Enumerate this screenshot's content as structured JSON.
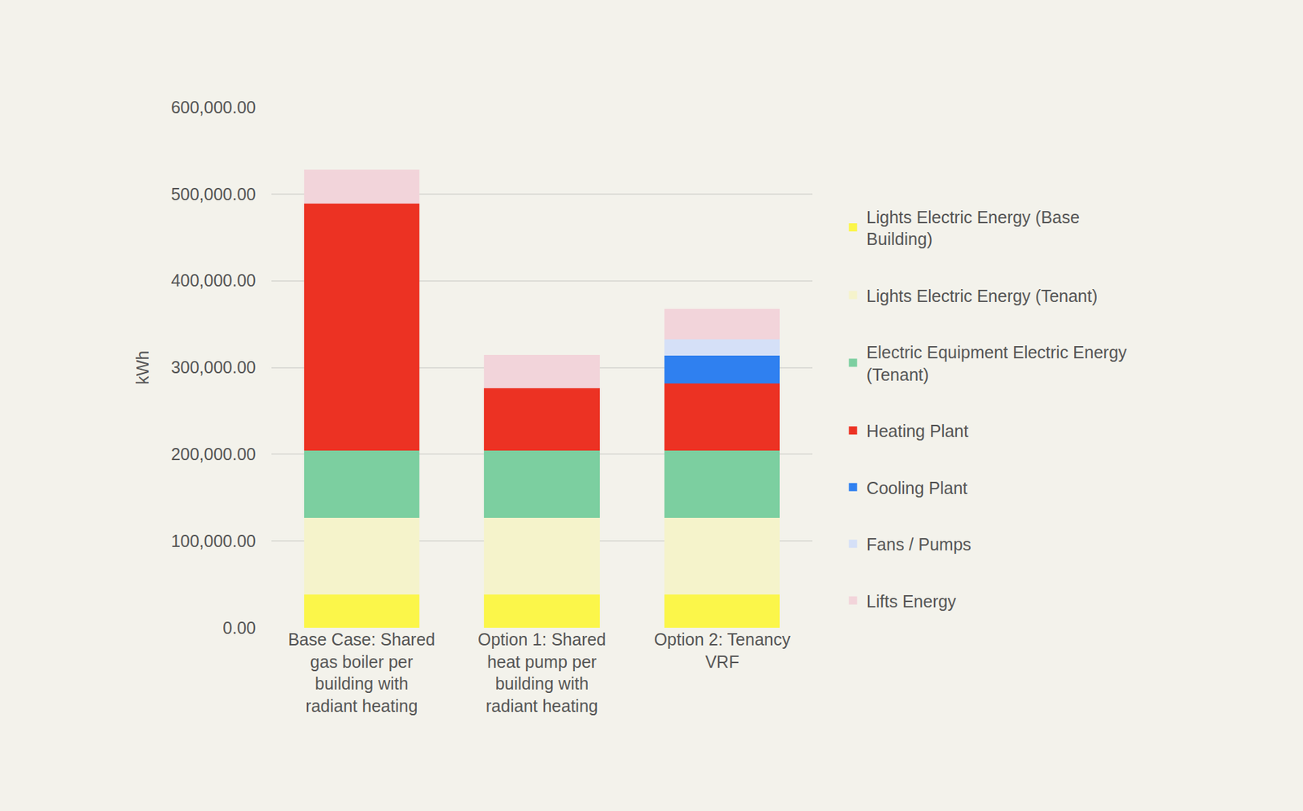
{
  "chart_data": {
    "type": "bar",
    "stacked": true,
    "grid": true,
    "legend": "right",
    "y_label": "kWh",
    "categories": [
      "Base Case: Shared gas boiler per building with radiant heating",
      "Option 1: Shared heat pump per building with radiant heating",
      "Option 2: Tenancy VRF"
    ],
    "series": [
      {
        "name": "Lights Electric Energy (Base Building)",
        "color": "#fbf64a",
        "values": [
          38000,
          38000,
          38000
        ]
      },
      {
        "name": "Lights Electric Energy (Tenant)",
        "color": "#f5f3cb",
        "values": [
          88500,
          88500,
          88500
        ]
      },
      {
        "name": "Electric Equipment Electric Energy (Tenant)",
        "color": "#7ccfa0",
        "values": [
          77500,
          77500,
          77500
        ]
      },
      {
        "name": "Heating Plant",
        "color": "#ec3223",
        "values": [
          285000,
          72000,
          78000
        ]
      },
      {
        "name": "Cooling Plant",
        "color": "#2f80f0",
        "values": [
          null,
          null,
          31500
        ]
      },
      {
        "name": "Fans / Pumps",
        "color": "#d5e0f7",
        "values": [
          null,
          null,
          19000
        ]
      },
      {
        "name": "Lifts Energy",
        "color": "#f2d4da",
        "values": [
          39000,
          38500,
          35500
        ]
      }
    ],
    "ylim": [
      0,
      600000
    ],
    "yticks": [
      {
        "value": 0,
        "label": "0.00"
      },
      {
        "value": 100000,
        "label": "100,000.00"
      },
      {
        "value": 200000,
        "label": "200,000.00"
      },
      {
        "value": 300000,
        "label": "300,000.00"
      },
      {
        "value": 400000,
        "label": "400,000.00"
      },
      {
        "value": 500000,
        "label": "500,000.00"
      },
      {
        "value": 600000,
        "label": "600,000.00"
      }
    ]
  }
}
